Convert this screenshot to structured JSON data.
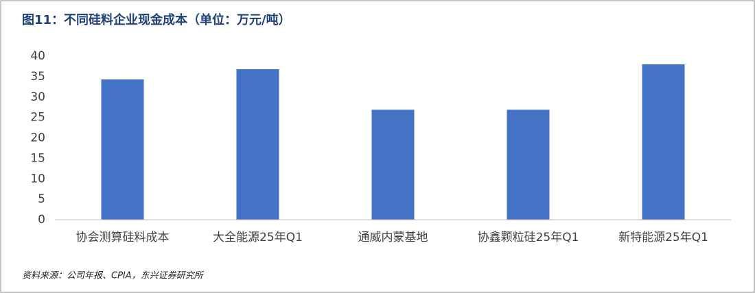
{
  "chart_data": {
    "type": "bar",
    "title": "图11：不同硅料企业现金成本（单位：万元/吨）",
    "categories": [
      "协会测算硅料成本",
      "大全能源25年Q1",
      "通威内蒙基地",
      "协鑫颗粒硅25年Q1",
      "新特能源25年Q1"
    ],
    "values": [
      34.3,
      36.8,
      26.9,
      26.9,
      38.0
    ],
    "color": "#4472c4",
    "ylim": [
      0,
      40
    ],
    "yticks": [
      0,
      5,
      10,
      15,
      20,
      25,
      30,
      35,
      40
    ],
    "grid": false,
    "source": "资料来源：公司年报、CPIA，东兴证券研究所"
  }
}
